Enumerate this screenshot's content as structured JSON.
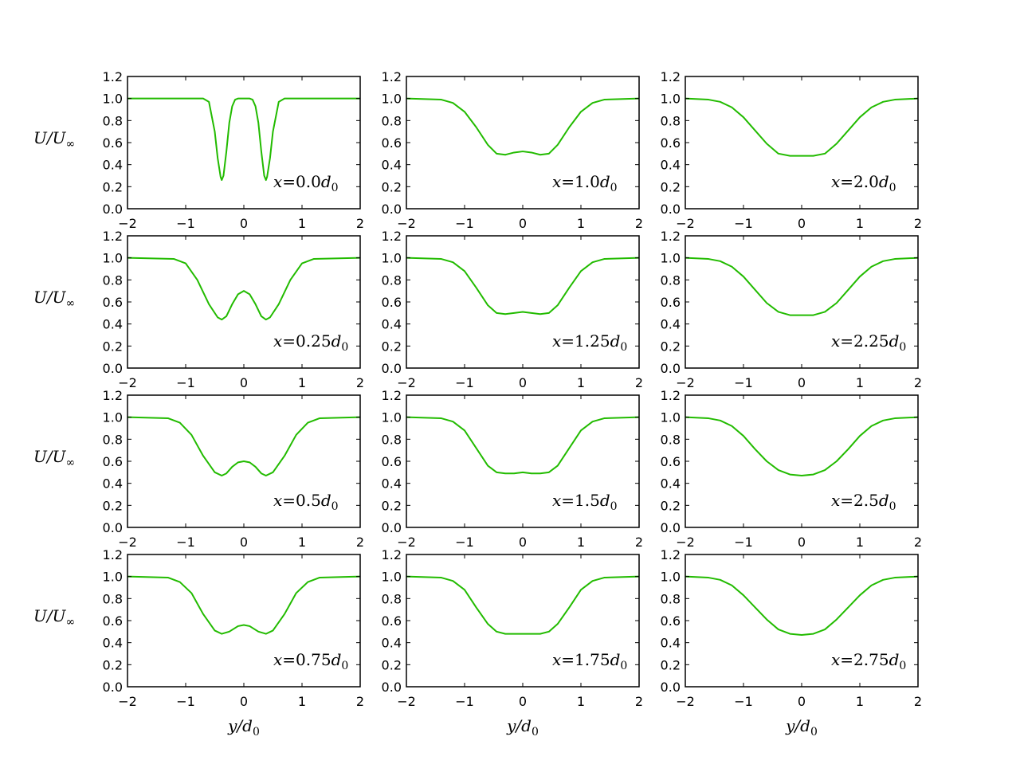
{
  "figure": {
    "ylabel": "U/U",
    "ylabel_sub": "∞",
    "xlabel": "y/d",
    "xlabel_sub": "0",
    "line_color": "#22bb00",
    "x_ticks": [
      "−2",
      "−1",
      "0",
      "1",
      "2"
    ],
    "y_ticks": [
      "0.0",
      "0.2",
      "0.4",
      "0.6",
      "0.8",
      "1.0",
      "1.2"
    ]
  },
  "chart_data": [
    {
      "type": "line",
      "annotation": {
        "prefix": "x",
        "value": "0.0",
        "unit": "d",
        "unit_sub": "0"
      },
      "xlim": [
        -2,
        2
      ],
      "ylim": [
        0,
        1.2
      ],
      "grid": false,
      "series": [
        {
          "x": [
            -2,
            -0.7,
            -0.6,
            -0.5,
            -0.45,
            -0.4,
            -0.38,
            -0.35,
            -0.3,
            -0.25,
            -0.2,
            -0.15,
            -0.1,
            0,
            0.1,
            0.15,
            0.2,
            0.25,
            0.3,
            0.35,
            0.38,
            0.4,
            0.45,
            0.5,
            0.6,
            0.7,
            2
          ],
          "y": [
            1.0,
            1.0,
            0.97,
            0.7,
            0.46,
            0.29,
            0.26,
            0.3,
            0.52,
            0.78,
            0.93,
            0.99,
            1.0,
            1.0,
            1.0,
            0.99,
            0.93,
            0.78,
            0.52,
            0.3,
            0.26,
            0.29,
            0.46,
            0.7,
            0.97,
            1.0,
            1.0
          ]
        }
      ]
    },
    {
      "type": "line",
      "annotation": {
        "prefix": "x",
        "value": "1.0",
        "unit": "d",
        "unit_sub": "0"
      },
      "xlim": [
        -2,
        2
      ],
      "ylim": [
        0,
        1.2
      ],
      "grid": false,
      "series": [
        {
          "x": [
            -2,
            -1.4,
            -1.2,
            -1.0,
            -0.8,
            -0.6,
            -0.45,
            -0.3,
            -0.15,
            0,
            0.15,
            0.3,
            0.45,
            0.6,
            0.8,
            1.0,
            1.2,
            1.4,
            2
          ],
          "y": [
            1.0,
            0.99,
            0.96,
            0.88,
            0.74,
            0.58,
            0.5,
            0.49,
            0.51,
            0.52,
            0.51,
            0.49,
            0.5,
            0.58,
            0.74,
            0.88,
            0.96,
            0.99,
            1.0
          ]
        }
      ]
    },
    {
      "type": "line",
      "annotation": {
        "prefix": "x",
        "value": "2.0",
        "unit": "d",
        "unit_sub": "0"
      },
      "xlim": [
        -2,
        2
      ],
      "ylim": [
        0,
        1.2
      ],
      "grid": false,
      "series": [
        {
          "x": [
            -2,
            -1.6,
            -1.4,
            -1.2,
            -1.0,
            -0.8,
            -0.6,
            -0.4,
            -0.2,
            0,
            0.2,
            0.4,
            0.6,
            0.8,
            1.0,
            1.2,
            1.4,
            1.6,
            2
          ],
          "y": [
            1.0,
            0.99,
            0.97,
            0.92,
            0.83,
            0.71,
            0.59,
            0.5,
            0.48,
            0.48,
            0.48,
            0.5,
            0.59,
            0.71,
            0.83,
            0.92,
            0.97,
            0.99,
            1.0
          ]
        }
      ]
    },
    {
      "type": "line",
      "annotation": {
        "prefix": "x",
        "value": "0.25",
        "unit": "d",
        "unit_sub": "0"
      },
      "xlim": [
        -2,
        2
      ],
      "ylim": [
        0,
        1.2
      ],
      "grid": false,
      "series": [
        {
          "x": [
            -2,
            -1.2,
            -1.0,
            -0.8,
            -0.6,
            -0.45,
            -0.38,
            -0.3,
            -0.2,
            -0.1,
            0,
            0.1,
            0.2,
            0.3,
            0.38,
            0.45,
            0.6,
            0.8,
            1.0,
            1.2,
            2
          ],
          "y": [
            1.0,
            0.99,
            0.95,
            0.8,
            0.58,
            0.46,
            0.44,
            0.47,
            0.58,
            0.67,
            0.7,
            0.67,
            0.58,
            0.47,
            0.44,
            0.46,
            0.58,
            0.8,
            0.95,
            0.99,
            1.0
          ]
        }
      ]
    },
    {
      "type": "line",
      "annotation": {
        "prefix": "x",
        "value": "1.25",
        "unit": "d",
        "unit_sub": "0"
      },
      "xlim": [
        -2,
        2
      ],
      "ylim": [
        0,
        1.2
      ],
      "grid": false,
      "series": [
        {
          "x": [
            -2,
            -1.4,
            -1.2,
            -1.0,
            -0.8,
            -0.6,
            -0.45,
            -0.3,
            -0.15,
            0,
            0.15,
            0.3,
            0.45,
            0.6,
            0.8,
            1.0,
            1.2,
            1.4,
            2
          ],
          "y": [
            1.0,
            0.99,
            0.96,
            0.88,
            0.73,
            0.57,
            0.5,
            0.49,
            0.5,
            0.51,
            0.5,
            0.49,
            0.5,
            0.57,
            0.73,
            0.88,
            0.96,
            0.99,
            1.0
          ]
        }
      ]
    },
    {
      "type": "line",
      "annotation": {
        "prefix": "x",
        "value": "2.25",
        "unit": "d",
        "unit_sub": "0"
      },
      "xlim": [
        -2,
        2
      ],
      "ylim": [
        0,
        1.2
      ],
      "grid": false,
      "series": [
        {
          "x": [
            -2,
            -1.6,
            -1.4,
            -1.2,
            -1.0,
            -0.8,
            -0.6,
            -0.4,
            -0.2,
            0,
            0.2,
            0.4,
            0.6,
            0.8,
            1.0,
            1.2,
            1.4,
            1.6,
            2
          ],
          "y": [
            1.0,
            0.99,
            0.97,
            0.92,
            0.83,
            0.71,
            0.59,
            0.51,
            0.48,
            0.48,
            0.48,
            0.51,
            0.59,
            0.71,
            0.83,
            0.92,
            0.97,
            0.99,
            1.0
          ]
        }
      ]
    },
    {
      "type": "line",
      "annotation": {
        "prefix": "x",
        "value": "0.5",
        "unit": "d",
        "unit_sub": "0"
      },
      "xlim": [
        -2,
        2
      ],
      "ylim": [
        0,
        1.2
      ],
      "grid": false,
      "series": [
        {
          "x": [
            -2,
            -1.3,
            -1.1,
            -0.9,
            -0.7,
            -0.5,
            -0.38,
            -0.3,
            -0.2,
            -0.1,
            0,
            0.1,
            0.2,
            0.3,
            0.38,
            0.5,
            0.7,
            0.9,
            1.1,
            1.3,
            2
          ],
          "y": [
            1.0,
            0.99,
            0.95,
            0.84,
            0.65,
            0.5,
            0.47,
            0.49,
            0.55,
            0.59,
            0.6,
            0.59,
            0.55,
            0.49,
            0.47,
            0.5,
            0.65,
            0.84,
            0.95,
            0.99,
            1.0
          ]
        }
      ]
    },
    {
      "type": "line",
      "annotation": {
        "prefix": "x",
        "value": "1.5",
        "unit": "d",
        "unit_sub": "0"
      },
      "xlim": [
        -2,
        2
      ],
      "ylim": [
        0,
        1.2
      ],
      "grid": false,
      "series": [
        {
          "x": [
            -2,
            -1.4,
            -1.2,
            -1.0,
            -0.8,
            -0.6,
            -0.45,
            -0.3,
            -0.15,
            0,
            0.15,
            0.3,
            0.45,
            0.6,
            0.8,
            1.0,
            1.2,
            1.4,
            2
          ],
          "y": [
            1.0,
            0.99,
            0.96,
            0.88,
            0.72,
            0.56,
            0.5,
            0.49,
            0.49,
            0.5,
            0.49,
            0.49,
            0.5,
            0.56,
            0.72,
            0.88,
            0.96,
            0.99,
            1.0
          ]
        }
      ]
    },
    {
      "type": "line",
      "annotation": {
        "prefix": "x",
        "value": "2.5",
        "unit": "d",
        "unit_sub": "0"
      },
      "xlim": [
        -2,
        2
      ],
      "ylim": [
        0,
        1.2
      ],
      "grid": false,
      "series": [
        {
          "x": [
            -2,
            -1.6,
            -1.4,
            -1.2,
            -1.0,
            -0.8,
            -0.6,
            -0.4,
            -0.2,
            0,
            0.2,
            0.4,
            0.6,
            0.8,
            1.0,
            1.2,
            1.4,
            1.6,
            2
          ],
          "y": [
            1.0,
            0.99,
            0.97,
            0.92,
            0.83,
            0.71,
            0.6,
            0.52,
            0.48,
            0.47,
            0.48,
            0.52,
            0.6,
            0.71,
            0.83,
            0.92,
            0.97,
            0.99,
            1.0
          ]
        }
      ]
    },
    {
      "type": "line",
      "annotation": {
        "prefix": "x",
        "value": "0.75",
        "unit": "d",
        "unit_sub": "0"
      },
      "xlim": [
        -2,
        2
      ],
      "ylim": [
        0,
        1.2
      ],
      "grid": false,
      "series": [
        {
          "x": [
            -2,
            -1.3,
            -1.1,
            -0.9,
            -0.7,
            -0.5,
            -0.38,
            -0.25,
            -0.1,
            0,
            0.1,
            0.25,
            0.38,
            0.5,
            0.7,
            0.9,
            1.1,
            1.3,
            2
          ],
          "y": [
            1.0,
            0.99,
            0.95,
            0.85,
            0.66,
            0.51,
            0.48,
            0.5,
            0.55,
            0.56,
            0.55,
            0.5,
            0.48,
            0.51,
            0.66,
            0.85,
            0.95,
            0.99,
            1.0
          ]
        }
      ]
    },
    {
      "type": "line",
      "annotation": {
        "prefix": "x",
        "value": "1.75",
        "unit": "d",
        "unit_sub": "0"
      },
      "xlim": [
        -2,
        2
      ],
      "ylim": [
        0,
        1.2
      ],
      "grid": false,
      "series": [
        {
          "x": [
            -2,
            -1.4,
            -1.2,
            -1.0,
            -0.8,
            -0.6,
            -0.45,
            -0.3,
            -0.15,
            0,
            0.15,
            0.3,
            0.45,
            0.6,
            0.8,
            1.0,
            1.2,
            1.4,
            2
          ],
          "y": [
            1.0,
            0.99,
            0.96,
            0.88,
            0.72,
            0.57,
            0.5,
            0.48,
            0.48,
            0.48,
            0.48,
            0.48,
            0.5,
            0.57,
            0.72,
            0.88,
            0.96,
            0.99,
            1.0
          ]
        }
      ]
    },
    {
      "type": "line",
      "annotation": {
        "prefix": "x",
        "value": "2.75",
        "unit": "d",
        "unit_sub": "0"
      },
      "xlim": [
        -2,
        2
      ],
      "ylim": [
        0,
        1.2
      ],
      "grid": false,
      "series": [
        {
          "x": [
            -2,
            -1.6,
            -1.4,
            -1.2,
            -1.0,
            -0.8,
            -0.6,
            -0.4,
            -0.2,
            0,
            0.2,
            0.4,
            0.6,
            0.8,
            1.0,
            1.2,
            1.4,
            1.6,
            2
          ],
          "y": [
            1.0,
            0.99,
            0.97,
            0.92,
            0.83,
            0.72,
            0.61,
            0.52,
            0.48,
            0.47,
            0.48,
            0.52,
            0.61,
            0.72,
            0.83,
            0.92,
            0.97,
            0.99,
            1.0
          ]
        }
      ]
    }
  ]
}
